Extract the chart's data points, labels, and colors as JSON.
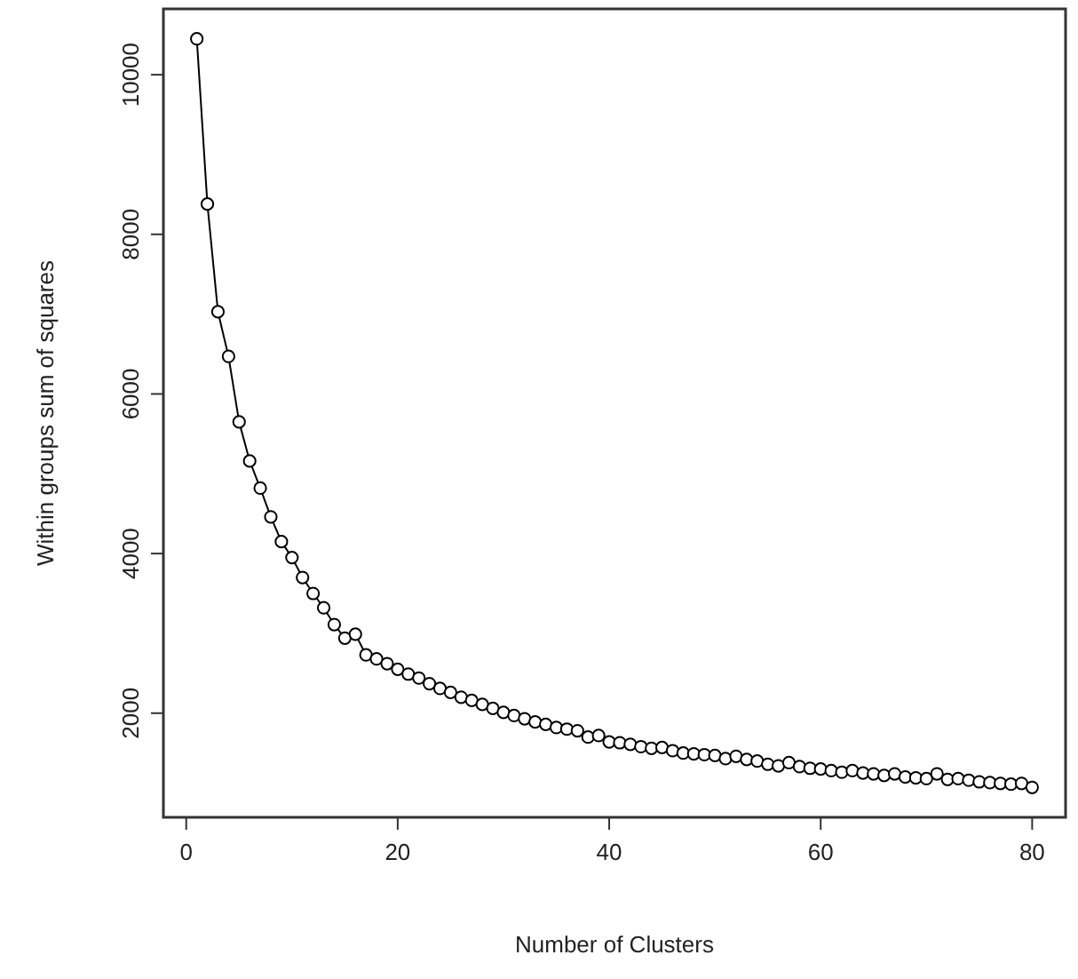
{
  "chart_data": {
    "type": "line",
    "xlabel": "Number of Clusters",
    "ylabel": "Within groups sum of squares",
    "marker": "circle",
    "line_style": "solid",
    "grid": false,
    "x": [
      1,
      2,
      3,
      4,
      5,
      6,
      7,
      8,
      9,
      10,
      11,
      12,
      13,
      14,
      15,
      16,
      17,
      18,
      19,
      20,
      21,
      22,
      23,
      24,
      25,
      26,
      27,
      28,
      29,
      30,
      31,
      32,
      33,
      34,
      35,
      36,
      37,
      38,
      39,
      40,
      41,
      42,
      43,
      44,
      45,
      46,
      47,
      48,
      49,
      50,
      51,
      52,
      53,
      54,
      55,
      56,
      57,
      58,
      59,
      60,
      61,
      62,
      63,
      64,
      65,
      66,
      67,
      68,
      69,
      70,
      71,
      72,
      73,
      74,
      75,
      76,
      77,
      78,
      79,
      80
    ],
    "series": [
      {
        "color": "#000000",
        "values": [
          10450,
          8380,
          7030,
          6470,
          5650,
          5160,
          4820,
          4460,
          4150,
          3950,
          3700,
          3500,
          3320,
          3110,
          2940,
          2990,
          2730,
          2680,
          2620,
          2550,
          2490,
          2440,
          2370,
          2310,
          2260,
          2200,
          2160,
          2110,
          2060,
          2010,
          1970,
          1930,
          1890,
          1860,
          1820,
          1800,
          1780,
          1700,
          1720,
          1640,
          1630,
          1610,
          1580,
          1560,
          1570,
          1530,
          1500,
          1490,
          1480,
          1470,
          1430,
          1460,
          1420,
          1400,
          1360,
          1340,
          1380,
          1330,
          1310,
          1300,
          1280,
          1260,
          1280,
          1250,
          1240,
          1220,
          1240,
          1200,
          1190,
          1180,
          1240,
          1170,
          1180,
          1160,
          1140,
          1130,
          1120,
          1110,
          1120,
          1070
        ]
      }
    ],
    "xlim": [
      -2.16,
      83.16
    ],
    "ylim": [
      695,
      10825
    ],
    "xticks": [
      0,
      20,
      40,
      60,
      80
    ],
    "yticks": [
      2000,
      4000,
      6000,
      8000,
      10000
    ]
  }
}
